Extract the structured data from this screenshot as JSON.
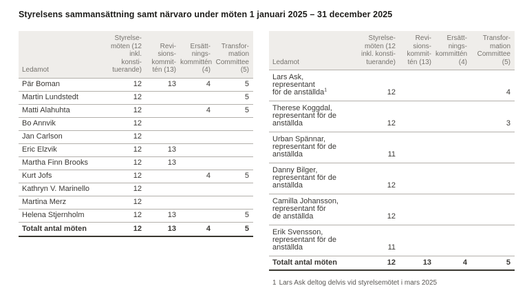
{
  "page_title": "Styrelsens sammansättning samt närvaro under möten 1 januari 2025 – 31 december 2025",
  "columns": [
    "Ledamot",
    "Styrelse-\nmöten (12\ninkl. konsti-\ntuerande)",
    "Revi-\nsions-\nkommit-\ntén (13)",
    "Ersätt-\nnings-\nkommittén\n(4)",
    "Transfor-\nmation\nCommittee\n(5)"
  ],
  "left_table": {
    "rows": [
      {
        "name": "Pär Boman",
        "values": [
          "12",
          "13",
          "4",
          "5"
        ]
      },
      {
        "name": "Martin Lundstedt",
        "values": [
          "12",
          "",
          "",
          "5"
        ]
      },
      {
        "name": "Matti Alahuhta",
        "values": [
          "12",
          "",
          "4",
          "5"
        ]
      },
      {
        "name": "Bo Annvik",
        "values": [
          "12",
          "",
          "",
          ""
        ]
      },
      {
        "name": "Jan Carlson",
        "values": [
          "12",
          "",
          "",
          ""
        ]
      },
      {
        "name": "Eric Elzvik",
        "values": [
          "12",
          "13",
          "",
          ""
        ]
      },
      {
        "name": "Martha Finn Brooks",
        "values": [
          "12",
          "13",
          "",
          ""
        ]
      },
      {
        "name": "Kurt Jofs",
        "values": [
          "12",
          "",
          "4",
          "5"
        ]
      },
      {
        "name": "Kathryn V. Marinello",
        "values": [
          "12",
          "",
          "",
          ""
        ]
      },
      {
        "name": "Martina Merz",
        "values": [
          "12",
          "",
          "",
          ""
        ]
      },
      {
        "name": "Helena Stjernholm",
        "values": [
          "12",
          "13",
          "",
          "5"
        ]
      }
    ],
    "total": {
      "label": "Totalt antal möten",
      "values": [
        "12",
        "13",
        "4",
        "5"
      ]
    }
  },
  "right_table": {
    "rows": [
      {
        "name": "Lars Ask,\nrepresentant\nför de anställda",
        "footnote_ref": "1",
        "values": [
          "12",
          "",
          "",
          "4"
        ]
      },
      {
        "name": "Therese Koggdal,\nrepresentant för de\nanställda",
        "values": [
          "12",
          "",
          "",
          "3"
        ]
      },
      {
        "name": "Urban Spännar,\nrepresentant för de\nanställda",
        "values": [
          "11",
          "",
          "",
          ""
        ]
      },
      {
        "name": "Danny Bilger,\nrepresentant för de\nanställda",
        "values": [
          "12",
          "",
          "",
          ""
        ]
      },
      {
        "name": "Camilla Johansson,\nrepresentant för\nde anställda",
        "values": [
          "12",
          "",
          "",
          ""
        ]
      },
      {
        "name": "Erik Svensson,\nrepresentant för de\nanställda",
        "values": [
          "11",
          "",
          "",
          ""
        ]
      }
    ],
    "total": {
      "label": "Totalt antal möten",
      "values": [
        "12",
        "13",
        "4",
        "5"
      ]
    }
  },
  "footnote": {
    "marker": "1",
    "text": "Lars Ask deltog delvis vid styrelsemötet i mars 2025"
  },
  "colors": {
    "header_bg": "#efedea",
    "row_border": "#b3b0ab",
    "total_border": "#38362f",
    "text": "#3a3835",
    "muted_text": "#76736e",
    "title_text": "#1d1c1a"
  }
}
